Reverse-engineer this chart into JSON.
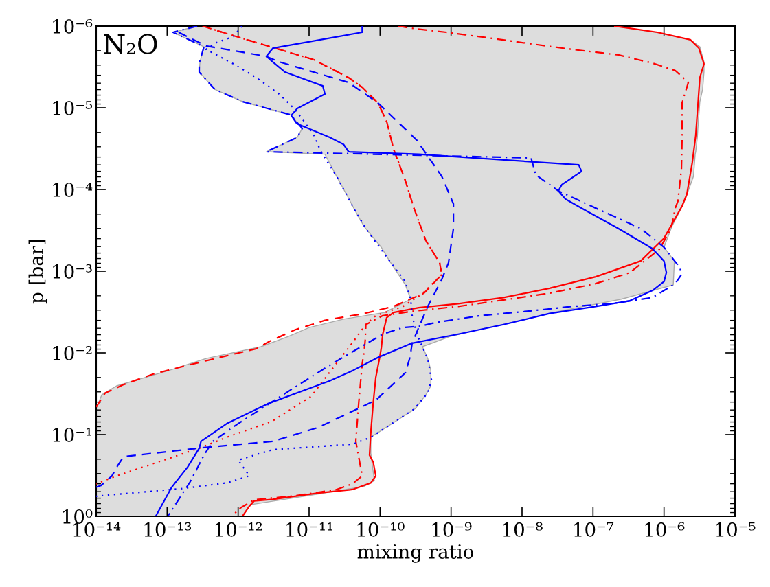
{
  "chart_data": {
    "type": "line",
    "xlabel": "mixing ratio",
    "ylabel": "p [bar]",
    "log": "xy",
    "grid": false,
    "annotations": [
      "N₂O"
    ],
    "xlim": [
      1e-14,
      1e-05
    ],
    "ylim": [
      1,
      1e-06
    ],
    "xticks": [
      {
        "value": 1e-14,
        "label": "10⁻¹⁴"
      },
      {
        "value": 1e-13,
        "label": "10⁻¹³"
      },
      {
        "value": 1e-12,
        "label": "10⁻¹²"
      },
      {
        "value": 1e-11,
        "label": "10⁻¹¹"
      },
      {
        "value": 1e-10,
        "label": "10⁻¹⁰"
      },
      {
        "value": 1e-09,
        "label": "10⁻⁹"
      },
      {
        "value": 1e-08,
        "label": "10⁻⁸"
      },
      {
        "value": 1e-07,
        "label": "10⁻⁷"
      },
      {
        "value": 1e-06,
        "label": "10⁻⁶"
      },
      {
        "value": 1e-05,
        "label": "10⁻⁵"
      }
    ],
    "yticks": [
      {
        "value": 1e-06,
        "label": "10⁻⁶"
      },
      {
        "value": 1e-05,
        "label": "10⁻⁵"
      },
      {
        "value": 0.0001,
        "label": "10⁻⁴"
      },
      {
        "value": 0.001,
        "label": "10⁻³"
      },
      {
        "value": 0.01,
        "label": "10⁻²"
      },
      {
        "value": 0.1,
        "label": "10⁻¹"
      },
      {
        "value": 1,
        "label": "10⁰"
      }
    ],
    "series": [
      {
        "type": "area",
        "color": "#dddddd",
        "x": [
          2.03e-07,
          7.7e-07,
          2.35e-06,
          3.2e-06,
          3.66e-06,
          3.66e-06,
          3.5e-06,
          3.2e-06,
          3.1e-06,
          3e-06,
          2.95e-06,
          2.8e-06,
          2.75e-06,
          2.6e-06,
          2e-06,
          1.68e-06,
          1.29e-06,
          1e-06,
          1.4e-06,
          1.35e-06,
          2.5e-07,
          2.73e-08,
          1.17e-08,
          3.3e-09,
          9.7e-10,
          3.95e-10,
          4.7e-10,
          5.2e-10,
          5.2e-10,
          4.4e-10,
          3.16e-10,
          7.4e-11,
          7.4e-11,
          8.3e-11,
          5.95e-11,
          1.25e-11,
          1.5e-12,
          1.15e-12,
          1e-14,
          1e-14,
          1e-14,
          1e-14,
          1e-14,
          1e-14,
          1e-14,
          1e-14,
          1.2e-14,
          1.95e-14,
          1.04e-13,
          3.54e-13,
          2.1e-12,
          5.1e-12,
          1e-11,
          3.05e-11,
          1.16e-10,
          2.7e-10,
          2.27e-10,
          1.36e-10,
          1.04e-10,
          5.95e-11,
          4.45e-11,
          3.65e-11,
          2.44e-11,
          1.67e-11,
          2.5e-12,
          6.8e-12,
          8e-12,
          5.5e-12,
          1.15e-12,
          4.7e-13,
          2.83e-13,
          2.9e-13,
          3.3e-13,
          2.03e-13,
          1.21e-13,
          2.65e-13
        ],
        "values": [
          1e-06,
          1.19e-06,
          1.47e-06,
          1.79e-06,
          2.74e-06,
          3.66e-06,
          5.95e-06,
          8.4e-06,
          1.22e-05,
          1.79e-05,
          2.3e-05,
          3.45e-05,
          3.7e-05,
          6.9e-05,
          0.000131,
          0.000182,
          0.000284,
          0.00051,
          0.00075,
          0.00147,
          0.0022,
          0.0032,
          0.00387,
          0.0049,
          0.0063,
          0.0084,
          0.0117,
          0.0165,
          0.0253,
          0.0326,
          0.048,
          0.108,
          0.169,
          0.366,
          0.43,
          0.54,
          0.72,
          1,
          1,
          0.72,
          0.54,
          0.43,
          0.366,
          0.169,
          0.108,
          0.048,
          0.0326,
          0.0253,
          0.0165,
          0.0117,
          0.0084,
          0.0063,
          0.0049,
          0.00387,
          0.0032,
          0.0022,
          0.00147,
          0.00075,
          0.00051,
          0.000284,
          0.000182,
          0.000131,
          6.9e-05,
          3.7e-05,
          3.45e-05,
          2.3e-05,
          1.79e-05,
          1.22e-05,
          8.4e-06,
          5.95e-06,
          3.66e-06,
          2.74e-06,
          1.79e-06,
          1.47e-06,
          1.19e-06,
          1e-06
        ]
      },
      {
        "type": "line",
        "color": "#ff0000",
        "line_style": "solid",
        "x": [
          2.03e-07,
          8.1e-07,
          2.35e-06,
          3.1e-06,
          3.66e-06,
          3.2e-06,
          2.8e-06,
          2.5e-06,
          2.1e-06,
          1.8e-06,
          1e-06,
          4.7e-07,
          1.09e-07,
          2.44e-08,
          5.5e-09,
          1.26e-09,
          3.5e-10,
          1.55e-10,
          1.24e-10,
          1.09e-10,
          1.04e-10,
          9.9e-11,
          8.7e-11,
          8e-11,
          7.4e-11,
          7.1e-11,
          8e-11,
          8.7e-11,
          7.4e-11,
          4.1e-11,
          1.34e-11,
          3.07e-12,
          1.68e-12,
          1.44e-12,
          1.15e-12
        ],
        "values": [
          1e-06,
          1.19e-06,
          1.47e-06,
          1.86e-06,
          2.9e-06,
          4.27e-06,
          2.17e-05,
          4.7e-05,
          0.000114,
          0.000159,
          0.000395,
          0.00075,
          0.00117,
          0.00162,
          0.0021,
          0.0025,
          0.0028,
          0.0032,
          0.0037,
          0.0059,
          0.0087,
          0.0112,
          0.02,
          0.041,
          0.094,
          0.179,
          0.217,
          0.32,
          0.39,
          0.47,
          0.52,
          0.62,
          0.65,
          0.75,
          1
        ]
      },
      {
        "type": "line",
        "color": "#ff0000",
        "line_style": "dashdot",
        "x": [
          1.81e-10,
          3.16e-10,
          8.6e-10,
          3.3e-09,
          1.17e-08,
          5.1e-08,
          2.27e-07,
          6.9e-07,
          1.44e-06,
          2.2e-06,
          1.8e-06,
          1.8e-06,
          1.76e-06,
          1.57e-06,
          1.44e-06,
          1.26e-06,
          8.6e-07,
          3.3e-07,
          1.09e-07,
          2.44e-08,
          5.5e-09,
          1.26e-09,
          2.83e-10,
          1.09e-10,
          6.3e-11,
          6.2e-11,
          5.95e-11,
          5.6e-11,
          5e-11,
          4.55e-11,
          5.6e-11,
          4.1e-11,
          2.44e-11,
          6.4e-12,
          1.68e-12,
          1.08e-12,
          8.1e-13
        ],
        "values": [
          1e-06,
          1.08e-06,
          1.19e-06,
          1.39e-06,
          1.62e-06,
          1.93e-06,
          2.25e-06,
          2.84e-06,
          3.5e-06,
          4.9e-06,
          8.7e-06,
          2.17e-05,
          5.7e-05,
          0.000139,
          0.000169,
          0.0003,
          0.00054,
          0.00104,
          0.00142,
          0.00186,
          0.00225,
          0.0027,
          0.0031,
          0.0035,
          0.0045,
          0.0067,
          0.0098,
          0.0136,
          0.041,
          0.121,
          0.32,
          0.4,
          0.47,
          0.56,
          0.63,
          0.79,
          1
        ]
      },
      {
        "type": "line",
        "color": "#ff0000",
        "line_style": "dashed",
        "x": [
          3.16e-13,
          8.6e-13,
          3.3e-12,
          1.17e-11,
          3.6e-11,
          5.6e-11,
          9.3e-11,
          1.24e-10,
          1.55e-10,
          2.27e-10,
          3e-10,
          4.4e-10,
          6.9e-10,
          7.4e-10,
          4.15e-10,
          1.55e-10,
          5.95e-11,
          1.67e-11,
          6.4e-12,
          2.8e-12,
          1.8e-12,
          5.9e-13,
          1.81e-13,
          6.3e-14,
          2.44e-14,
          1.34e-14,
          1e-14
        ],
        "values": [
          1e-06,
          1.31e-06,
          1.86e-06,
          2.58e-06,
          4.27e-06,
          5.6e-06,
          8.7e-06,
          1.47e-05,
          3.2e-05,
          7.8e-05,
          0.000169,
          0.00042,
          0.00079,
          0.0011,
          0.00186,
          0.0027,
          0.0033,
          0.004,
          0.0052,
          0.0072,
          0.0089,
          0.0112,
          0.0144,
          0.0182,
          0.0244,
          0.031,
          0.046
        ]
      },
      {
        "type": "line",
        "color": "#ff0000",
        "line_style": "dotted",
        "x": [
          3.16e-13,
          8.6e-13,
          3.3e-12,
          1.17e-11,
          3.6e-11,
          5.6e-11,
          9.3e-11,
          1.24e-10,
          1.55e-10,
          2.27e-10,
          3e-10,
          4.4e-10,
          6.9e-10,
          7.4e-10,
          3.9e-10,
          2.1e-10,
          8.7e-11,
          6.3e-11,
          3.6e-11,
          2.85e-11,
          1.07e-11,
          3.07e-12,
          6.9e-13,
          2.83e-13,
          7.4e-14,
          1.95e-14,
          1.17e-14,
          1e-14
        ],
        "values": [
          1e-06,
          1.31e-06,
          1.86e-06,
          2.58e-06,
          4.27e-06,
          5.6e-06,
          8.7e-06,
          1.47e-05,
          3.2e-05,
          7.8e-05,
          0.000169,
          0.00042,
          0.00079,
          0.0011,
          0.0019,
          0.0027,
          0.0035,
          0.0045,
          0.0087,
          0.0112,
          0.034,
          0.068,
          0.108,
          0.147,
          0.217,
          0.32,
          0.38,
          0.4
        ]
      },
      {
        "type": "line",
        "color": "#0000ff",
        "line_style": "solid",
        "x": [
          5.6e-11,
          5.6e-11,
          3.1e-12,
          2.5e-12,
          3.07e-12,
          4.6e-12,
          1.56e-11,
          1.67e-11,
          6.8e-12,
          5.6e-12,
          6.7e-12,
          1.95e-11,
          3.05e-11,
          3.6e-11,
          3.5e-10,
          6.3e-08,
          6.9e-08,
          3.65e-08,
          3.25e-08,
          4.1e-08,
          7.4e-08,
          2.27e-07,
          6.9e-07,
          1e-06,
          1.08e-06,
          1e-06,
          6.9e-07,
          3.3e-07,
          1.09e-07,
          2.44e-08,
          5.5e-09,
          1.26e-09,
          2.83e-10,
          9.7e-11,
          4.1e-11,
          1.95e-11,
          2.6e-12,
          6.9e-13,
          3e-13,
          2.83e-13,
          1.94e-13,
          1.16e-13,
          6.9e-14
        ],
        "values": [
          1e-06,
          1.19e-06,
          1.86e-06,
          2.34e-06,
          2.74e-06,
          3.66e-06,
          5.4e-06,
          6.8e-06,
          1.02e-05,
          1.24e-05,
          1.56e-05,
          2.3e-05,
          2.8e-05,
          3.45e-05,
          3.7e-05,
          5e-05,
          6e-05,
          8.7e-05,
          0.000104,
          0.000131,
          0.000175,
          0.0003,
          0.00053,
          0.00075,
          0.00104,
          0.00134,
          0.00172,
          0.0023,
          0.0027,
          0.0033,
          0.0045,
          0.0059,
          0.0076,
          0.0112,
          0.0165,
          0.022,
          0.042,
          0.0735,
          0.121,
          0.147,
          0.25,
          0.44,
          1
        ]
      },
      {
        "type": "line",
        "color": "#0000ff",
        "line_style": "dashed",
        "x": [
          1.45e-13,
          3.54e-13,
          2.45e-12,
          3.8e-12,
          3.6e-11,
          9.3e-11,
          3.3e-10,
          4.4e-10,
          7.4e-10,
          1.08e-09,
          1.08e-09,
          9.2e-10,
          7.4e-10,
          4.7e-10,
          3.5e-10,
          2.83e-10,
          2.65e-10,
          2.27e-10,
          8.7e-11,
          1.34e-11,
          3.07e-12,
          3.3e-13,
          2.44e-14,
          1.95e-14,
          1.67e-14,
          1.17e-14,
          1e-14
        ],
        "values": [
          1.19e-06,
          1.75e-06,
          2.34e-06,
          2.74e-06,
          4.9e-06,
          8.7e-06,
          2.5e-05,
          3.6e-05,
          6.9e-05,
          0.00015,
          0.0003,
          0.00079,
          0.00126,
          0.0027,
          0.0049,
          0.0076,
          0.0112,
          0.0175,
          0.038,
          0.082,
          0.121,
          0.144,
          0.186,
          0.25,
          0.32,
          0.42,
          0.44
        ]
      },
      {
        "type": "line",
        "color": "#0000ff",
        "line_style": "dotted",
        "x": [
          1.13e-12,
          8.6e-13,
          4.7e-13,
          3.54e-13,
          8.6e-13,
          1.8e-12,
          3.8e-12,
          6e-12,
          8e-12,
          1.17e-11,
          1.46e-11,
          1.67e-11,
          2.44e-11,
          4.45e-11,
          6.3e-11,
          1.36e-10,
          2.27e-10,
          2.7e-10,
          2.83e-10,
          3.3e-10,
          4.7e-10,
          5.3e-10,
          4.7e-10,
          3e-10,
          7.4e-11,
          4.1e-11,
          3.07e-12,
          1e-12,
          1.44e-12,
          6.9e-13,
          1.55e-13,
          1.17e-14,
          1e-14
        ],
        "values": [
          1e-06,
          1.34e-06,
          1.62e-06,
          1.93e-06,
          2.9e-06,
          4.27e-06,
          6.8e-06,
          1e-05,
          1.36e-05,
          2.17e-05,
          3.4e-05,
          4.1e-05,
          6.9e-05,
          0.000182,
          0.0003,
          0.00075,
          0.00134,
          0.0022,
          0.0035,
          0.0059,
          0.0119,
          0.0213,
          0.031,
          0.049,
          0.108,
          0.131,
          0.153,
          0.205,
          0.32,
          0.39,
          0.46,
          0.56,
          0.57
        ]
      },
      {
        "type": "line",
        "color": "#0000ff",
        "line_style": "dashdot",
        "x": [
          2.65e-13,
          1.21e-13,
          3.3e-13,
          2.83e-13,
          2.83e-13,
          4.7e-13,
          1.15e-12,
          5.5e-12,
          8e-12,
          6.8e-12,
          2.5e-12,
          1.34e-08,
          1.56e-08,
          3.25e-08,
          1.09e-07,
          4.7e-07,
          1e-06,
          1.68e-06,
          1.76e-06,
          1.44e-06,
          6.9e-07,
          1.81e-07,
          5.1e-08,
          1.17e-08,
          2.6e-09,
          5.9e-10,
          3.8e-10,
          2.1e-10,
          1.09e-10,
          2.1e-11,
          5.1e-12,
          1e-12,
          4.4e-13,
          3.3e-13,
          2.1e-13,
          1.02e-13
        ],
        "values": [
          1e-06,
          1.19e-06,
          1.79e-06,
          2.84e-06,
          3.66e-06,
          5.95e-06,
          8.4e-06,
          1.22e-05,
          1.79e-05,
          2.3e-05,
          3.45e-05,
          4.1e-05,
          6.6e-05,
          0.000104,
          0.000169,
          0.0003,
          0.00051,
          0.00091,
          0.0011,
          0.00142,
          0.0021,
          0.0025,
          0.0027,
          0.0031,
          0.0035,
          0.00427,
          0.0047,
          0.0049,
          0.0059,
          0.0136,
          0.0296,
          0.0735,
          0.121,
          0.179,
          0.38,
          1
        ]
      }
    ]
  }
}
